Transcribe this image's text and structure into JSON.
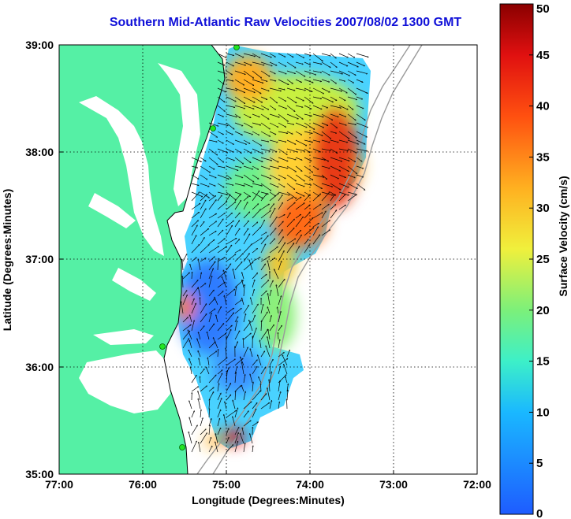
{
  "title": "Southern Mid-Atlantic Raw Velocities 2007/08/02 1300 GMT",
  "axes": {
    "xlabel": "Longitude (Degrees:Minutes)",
    "ylabel": "Latitude (Degrees:Minutes)",
    "x_ticks": [
      "77:00",
      "76:00",
      "75:00",
      "74:00",
      "73:00",
      "72:00"
    ],
    "y_ticks": [
      "39:00",
      "38:00",
      "37:00",
      "36:00",
      "35:00"
    ]
  },
  "colorbar": {
    "label": "Surface Velocity (cm/s)",
    "ticks": [
      "0",
      "5",
      "10",
      "15",
      "20",
      "25",
      "30",
      "35",
      "40",
      "45",
      "50"
    ],
    "min": 0,
    "max": 50
  },
  "colors": {
    "title": "#1010d8",
    "land": "#55f0a5",
    "grid": "#000000",
    "isobath": "#9a9a9a",
    "station": "#22e622"
  },
  "chart_data": {
    "type": "heatmap",
    "title": "Southern Mid-Atlantic Raw Velocities 2007/08/02 1300 GMT",
    "xlabel": "Longitude (Degrees:Minutes)",
    "ylabel": "Latitude (Degrees:Minutes)",
    "xlim": [
      -77,
      -72
    ],
    "ylim": [
      35,
      39
    ],
    "color_range": [
      0,
      50
    ],
    "colorbar_label": "Surface Velocity (cm/s)",
    "grid": true,
    "stations": [
      {
        "lon": -74.85,
        "lat": 38.98
      },
      {
        "lon": -75.16,
        "lat": 38.22
      },
      {
        "lon": -75.35,
        "lat": 36.15
      },
      {
        "lon": -75.5,
        "lat": 35.3
      }
    ],
    "hotspots": [
      {
        "lon": -73.6,
        "lat": 37.8,
        "speed": 44
      },
      {
        "lon": -74.3,
        "lat": 37.15,
        "speed": 40
      },
      {
        "lon": -74.9,
        "lat": 38.7,
        "speed": 32
      },
      {
        "lon": -75.6,
        "lat": 36.55,
        "speed": 33
      },
      {
        "lon": -74.85,
        "lat": 35.4,
        "speed": 42
      },
      {
        "lon": -74.0,
        "lat": 38.4,
        "speed": 28
      }
    ]
  }
}
